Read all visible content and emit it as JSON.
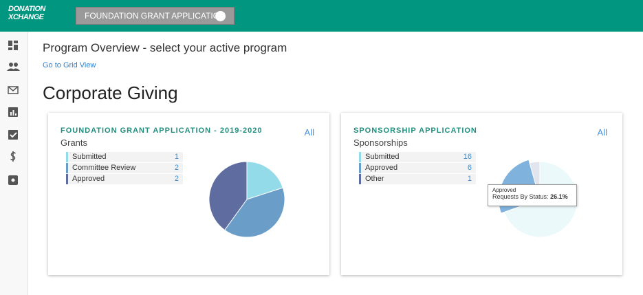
{
  "header": {
    "logo_line1": "DONATION",
    "logo_line2": "XCHANGE",
    "program_button": "FOUNDATION GRANT APPLICATION"
  },
  "page": {
    "title": "Program Overview - select your active program",
    "grid_link": "Go to Grid View",
    "section": "Corporate Giving"
  },
  "cards": [
    {
      "title": "FOUNDATION GRANT APPLICATION - 2019-2020",
      "subtitle": "Grants",
      "all_link": "All",
      "rows": [
        {
          "label": "Submitted",
          "count": 1,
          "color": "#93dbe9"
        },
        {
          "label": "Committee Review",
          "count": 2,
          "color": "#6a9ec8"
        },
        {
          "label": "Approved",
          "count": 2,
          "color": "#5e6ca0"
        }
      ]
    },
    {
      "title": "SPONSORSHIP APPLICATION",
      "subtitle": "Sponsorships",
      "all_link": "All",
      "rows": [
        {
          "label": "Submitted",
          "count": 16,
          "color": "#93dbe9"
        },
        {
          "label": "Approved",
          "count": 6,
          "color": "#6a9ec8"
        },
        {
          "label": "Other",
          "count": 1,
          "color": "#5e6ca0"
        }
      ],
      "tooltip": {
        "series": "Approved",
        "label": "Requests By Status:",
        "value": "26.1%"
      }
    }
  ]
}
